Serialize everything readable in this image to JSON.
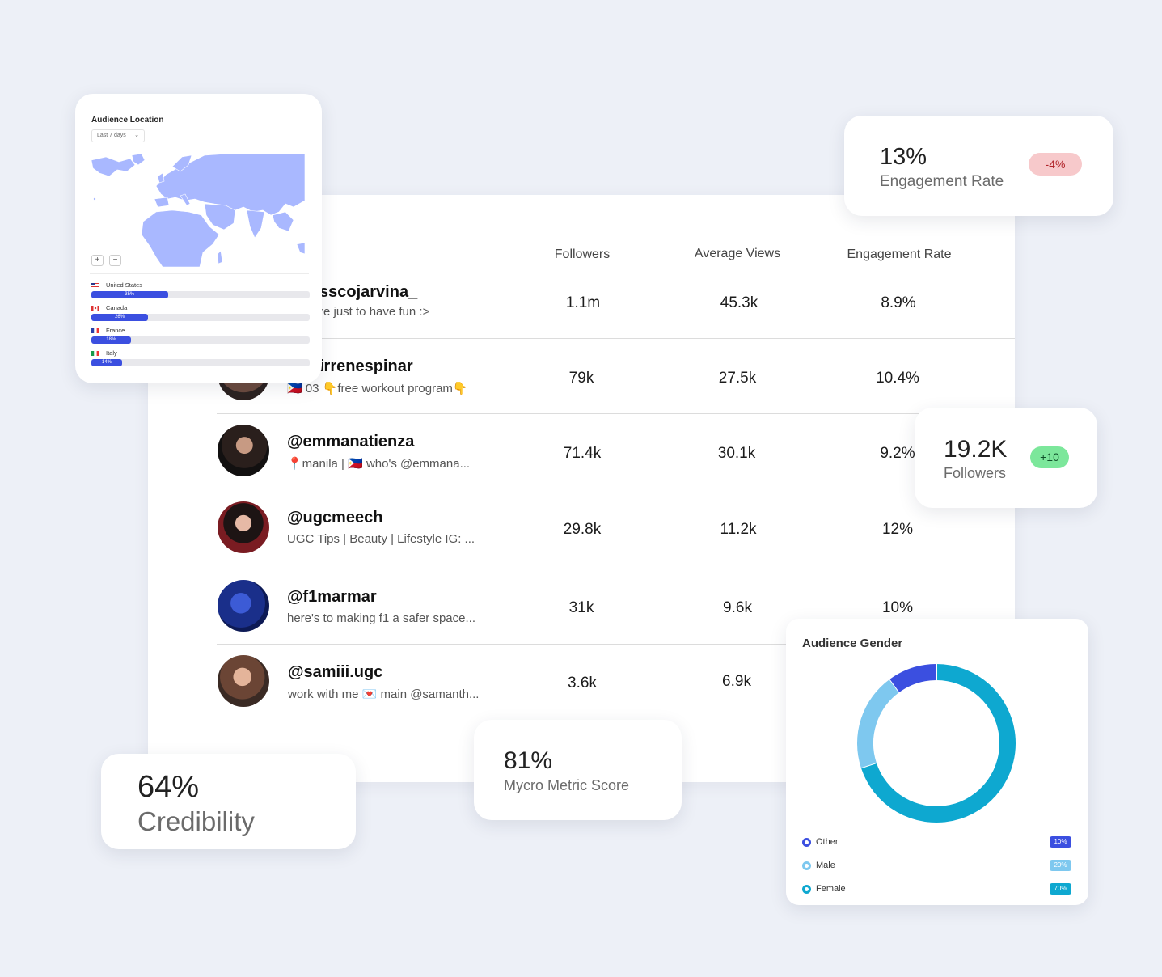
{
  "table": {
    "columns": [
      "Followers",
      "Average Views",
      "Engagement Rate"
    ],
    "rows": [
      {
        "handle": "sscojarvina_",
        "bio": "re just to have fun :>",
        "followers": "1.1m",
        "avg_views": "45.3k",
        "engagement": "8.9%"
      },
      {
        "handle": "irrenespinar",
        "bio": "🇵🇭 03 👇free workout program👇",
        "followers": "79k",
        "avg_views": "27.5k",
        "engagement": "10.4%"
      },
      {
        "handle": "@emmanatienza",
        "bio": "📍manila | 🇵🇭 who's @emmana...",
        "followers": "71.4k",
        "avg_views": "30.1k",
        "engagement": "9.2%"
      },
      {
        "handle": "@ugcmeech",
        "bio": "UGC Tips | Beauty | Lifestyle IG: ...",
        "followers": "29.8k",
        "avg_views": "11.2k",
        "engagement": "12%"
      },
      {
        "handle": "@f1marmar",
        "bio": "here's to making f1 a safer space...",
        "followers": "31k",
        "avg_views": "9.6k",
        "engagement": "10%"
      },
      {
        "handle": "@samiii.ugc",
        "bio": "work with me 💌 main @samanth...",
        "followers": "3.6k",
        "avg_views": "6.9k",
        "engagement": ""
      }
    ]
  },
  "audience_location": {
    "title": "Audience Location",
    "period": "Last 7 days",
    "zoom_in": "+",
    "zoom_out": "−",
    "countries": [
      {
        "name": "United States",
        "percent_label": "35%",
        "share": 0.35
      },
      {
        "name": "Canada",
        "percent_label": "26%",
        "share": 0.26
      },
      {
        "name": "France",
        "percent_label": "18%",
        "share": 0.18
      },
      {
        "name": "Italy",
        "percent_label": "14%",
        "share": 0.14
      }
    ]
  },
  "engagement_card": {
    "value": "13%",
    "label": "Engagement Rate",
    "change": "-4%"
  },
  "followers_card": {
    "value": "19.2K",
    "label": "Followers",
    "change": "+10"
  },
  "credibility_card": {
    "value": "64%",
    "label": "Credibility"
  },
  "mycro_card": {
    "value": "81%",
    "label": "Mycro Metric Score"
  },
  "audience_gender": {
    "title": "Audience Gender",
    "legend": [
      {
        "name": "Other",
        "percent": "10%",
        "color": "#3b4fe0"
      },
      {
        "name": "Male",
        "percent": "20%",
        "color": "#7ec8ef"
      },
      {
        "name": "Female",
        "percent": "70%",
        "color": "#0ea8d0"
      }
    ]
  },
  "chart_data": {
    "type": "pie",
    "title": "Audience Gender",
    "categories": [
      "Other",
      "Male",
      "Female"
    ],
    "values": [
      10,
      20,
      70
    ]
  },
  "colors": {
    "accent": "#3b4fe0",
    "negative_pill_bg": "#f7c9cb",
    "positive_pill_bg": "#7ce79b",
    "map_fill": "#a9b8ff"
  }
}
